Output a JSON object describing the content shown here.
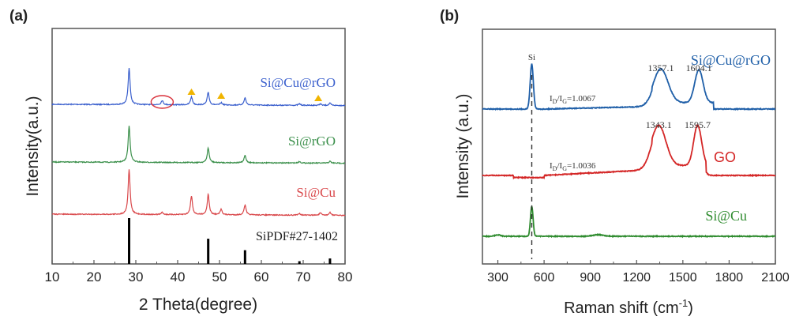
{
  "chart_data": [
    {
      "panel_label": "(a)",
      "type": "line",
      "title": "",
      "xlabel": "2 Theta(degree)",
      "ylabel": "Intensity(a.u.)",
      "xlim": [
        10,
        80
      ],
      "xticks": [
        10,
        20,
        30,
        40,
        50,
        60,
        70,
        80
      ],
      "grid": false,
      "legend": "inline labels right of each curve",
      "series": [
        {
          "name": "Si@Cu@rGO",
          "color": "#3a5fcd",
          "peaks": [
            {
              "x": 28.4,
              "rel_height": 1.0
            },
            {
              "x": 36.3,
              "rel_height": 0.12
            },
            {
              "x": 43.3,
              "rel_height": 0.22
            },
            {
              "x": 47.3,
              "rel_height": 0.35
            },
            {
              "x": 50.4,
              "rel_height": 0.06
            },
            {
              "x": 56.1,
              "rel_height": 0.2
            },
            {
              "x": 69.1,
              "rel_height": 0.04
            },
            {
              "x": 74.1,
              "rel_height": 0.04
            },
            {
              "x": 76.4,
              "rel_height": 0.06
            }
          ]
        },
        {
          "name": "Si@rGO",
          "color": "#3a8f4a",
          "peaks": [
            {
              "x": 28.4,
              "rel_height": 1.0
            },
            {
              "x": 47.3,
              "rel_height": 0.4
            },
            {
              "x": 56.1,
              "rel_height": 0.2
            },
            {
              "x": 69.1,
              "rel_height": 0.04
            },
            {
              "x": 76.4,
              "rel_height": 0.05
            }
          ]
        },
        {
          "name": "Si@Cu",
          "color": "#d9474a",
          "peaks": [
            {
              "x": 28.4,
              "rel_height": 1.0
            },
            {
              "x": 36.3,
              "rel_height": 0.05
            },
            {
              "x": 43.3,
              "rel_height": 0.42
            },
            {
              "x": 47.3,
              "rel_height": 0.45
            },
            {
              "x": 50.4,
              "rel_height": 0.12
            },
            {
              "x": 56.1,
              "rel_height": 0.22
            },
            {
              "x": 69.1,
              "rel_height": 0.04
            },
            {
              "x": 74.1,
              "rel_height": 0.05
            },
            {
              "x": 76.4,
              "rel_height": 0.06
            }
          ]
        }
      ],
      "reference": {
        "name": "SiPDF#27-1402",
        "color": "#000000",
        "lines": [
          {
            "x": 28.4,
            "rel_height": 1.0
          },
          {
            "x": 47.3,
            "rel_height": 0.55
          },
          {
            "x": 56.1,
            "rel_height": 0.3
          },
          {
            "x": 69.1,
            "rel_height": 0.06
          },
          {
            "x": 76.4,
            "rel_height": 0.12
          }
        ]
      },
      "annotations": [
        {
          "type": "circle",
          "x": 36.3,
          "series": "Si@Cu@rGO",
          "color": "#d9303a"
        },
        {
          "type": "triangle",
          "x": 43.3,
          "series": "Si@Cu@rGO",
          "color": "#f0b400"
        },
        {
          "type": "triangle",
          "x": 50.4,
          "series": "Si@Cu@rGO",
          "color": "#f0b400"
        },
        {
          "type": "triangle",
          "x": 73.6,
          "series": "Si@Cu@rGO",
          "color": "#f0b400"
        }
      ]
    },
    {
      "panel_label": "(b)",
      "type": "line",
      "title": "",
      "xlabel": "Raman shift (cm",
      "xlabel_sup": "-1",
      "xlabel_end": ")",
      "ylabel": "Intensity (a.u.)",
      "xlim": [
        200,
        2100
      ],
      "xticks": [
        300,
        600,
        900,
        1200,
        1500,
        1800,
        2100
      ],
      "grid": false,
      "legend": "inline labels right of each curve",
      "dashed_line_x": 520,
      "si_label": "Si",
      "series": [
        {
          "name": "Si@Cu@rGO",
          "color": "#1f5fa8",
          "peaks": [
            {
              "x": 520,
              "rel_height": 1.0,
              "width": 12
            },
            {
              "x": 1357.1,
              "rel_height": 0.75,
              "width": 55,
              "label": "1357.1"
            },
            {
              "x": 1604.1,
              "rel_height": 0.73,
              "width": 32,
              "label": "1604.1"
            }
          ],
          "ratio_label": {
            "prefix": "I",
            "sub1": "D",
            "mid": "/I",
            "sub2": "G",
            "suffix": "=1.0067"
          }
        },
        {
          "name": "GO",
          "color": "#d42626",
          "peaks": [
            {
              "x": 1343.1,
              "rel_height": 1.0,
              "width": 55,
              "label": "1343.1"
            },
            {
              "x": 1595.7,
              "rel_height": 1.0,
              "width": 30,
              "label": "1595.7"
            }
          ],
          "ratio_label": {
            "prefix": "I",
            "sub1": "D",
            "mid": "/I",
            "sub2": "G",
            "suffix": "=1.0036"
          }
        },
        {
          "name": "Si@Cu",
          "color": "#2e8b2e",
          "peaks": [
            {
              "x": 520,
              "rel_height": 1.0,
              "width": 10
            },
            {
              "x": 300,
              "rel_height": 0.05,
              "width": 20
            },
            {
              "x": 950,
              "rel_height": 0.05,
              "width": 40
            }
          ]
        }
      ]
    }
  ]
}
